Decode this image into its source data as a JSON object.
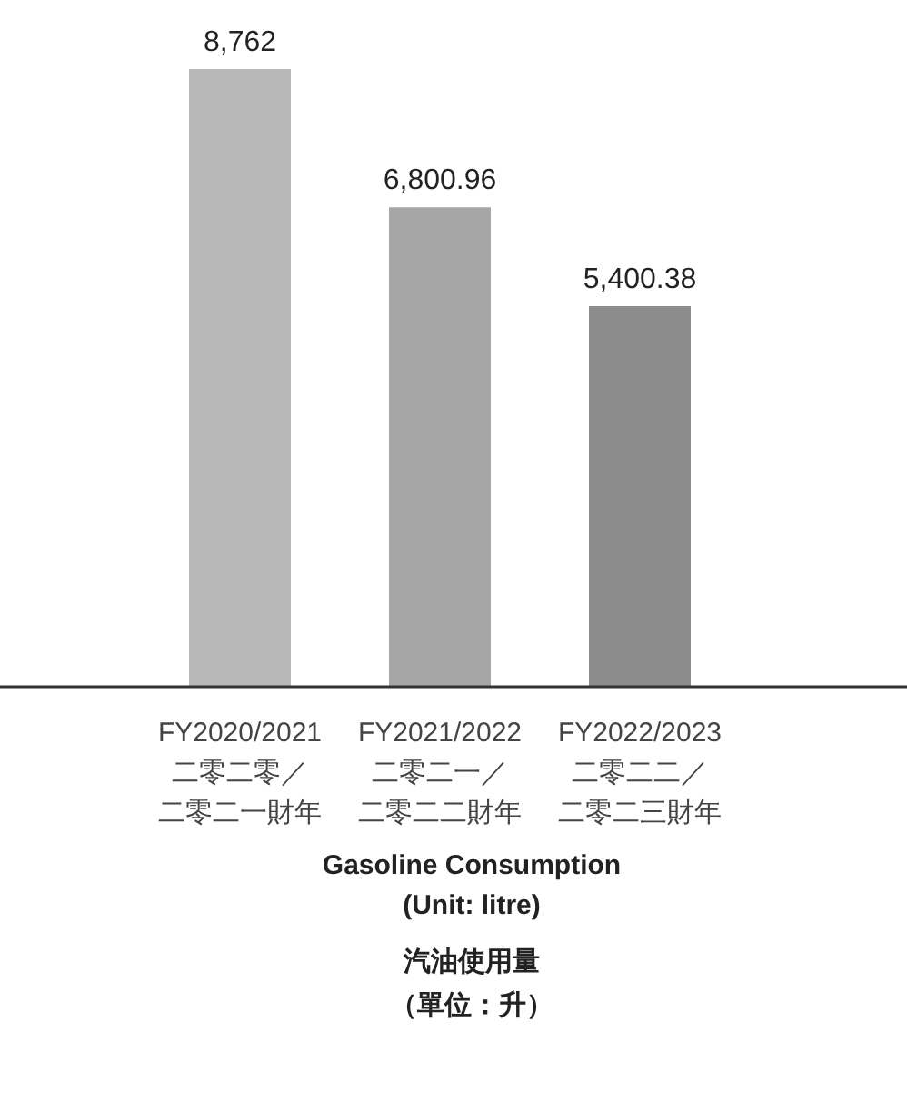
{
  "chart_data": {
    "type": "bar",
    "title": "Gasoline Consumption\n(Unit: litre)",
    "subtitle": "汽油使用量（單位：升）",
    "categories": [
      "FY2020/2021\n二零二零／二零二一財年",
      "FY2021/2022\n二零二一／二零二二財年",
      "FY2022/2023\n二零二二／二零二三財年"
    ],
    "values": [
      8762,
      6800.96,
      5400.38
    ],
    "colors": [
      "#b8b8b8",
      "#a6a6a6",
      "#8c8c8c"
    ],
    "value_labels": [
      "8,762",
      "6,800.96",
      "5,400.38"
    ]
  }
}
